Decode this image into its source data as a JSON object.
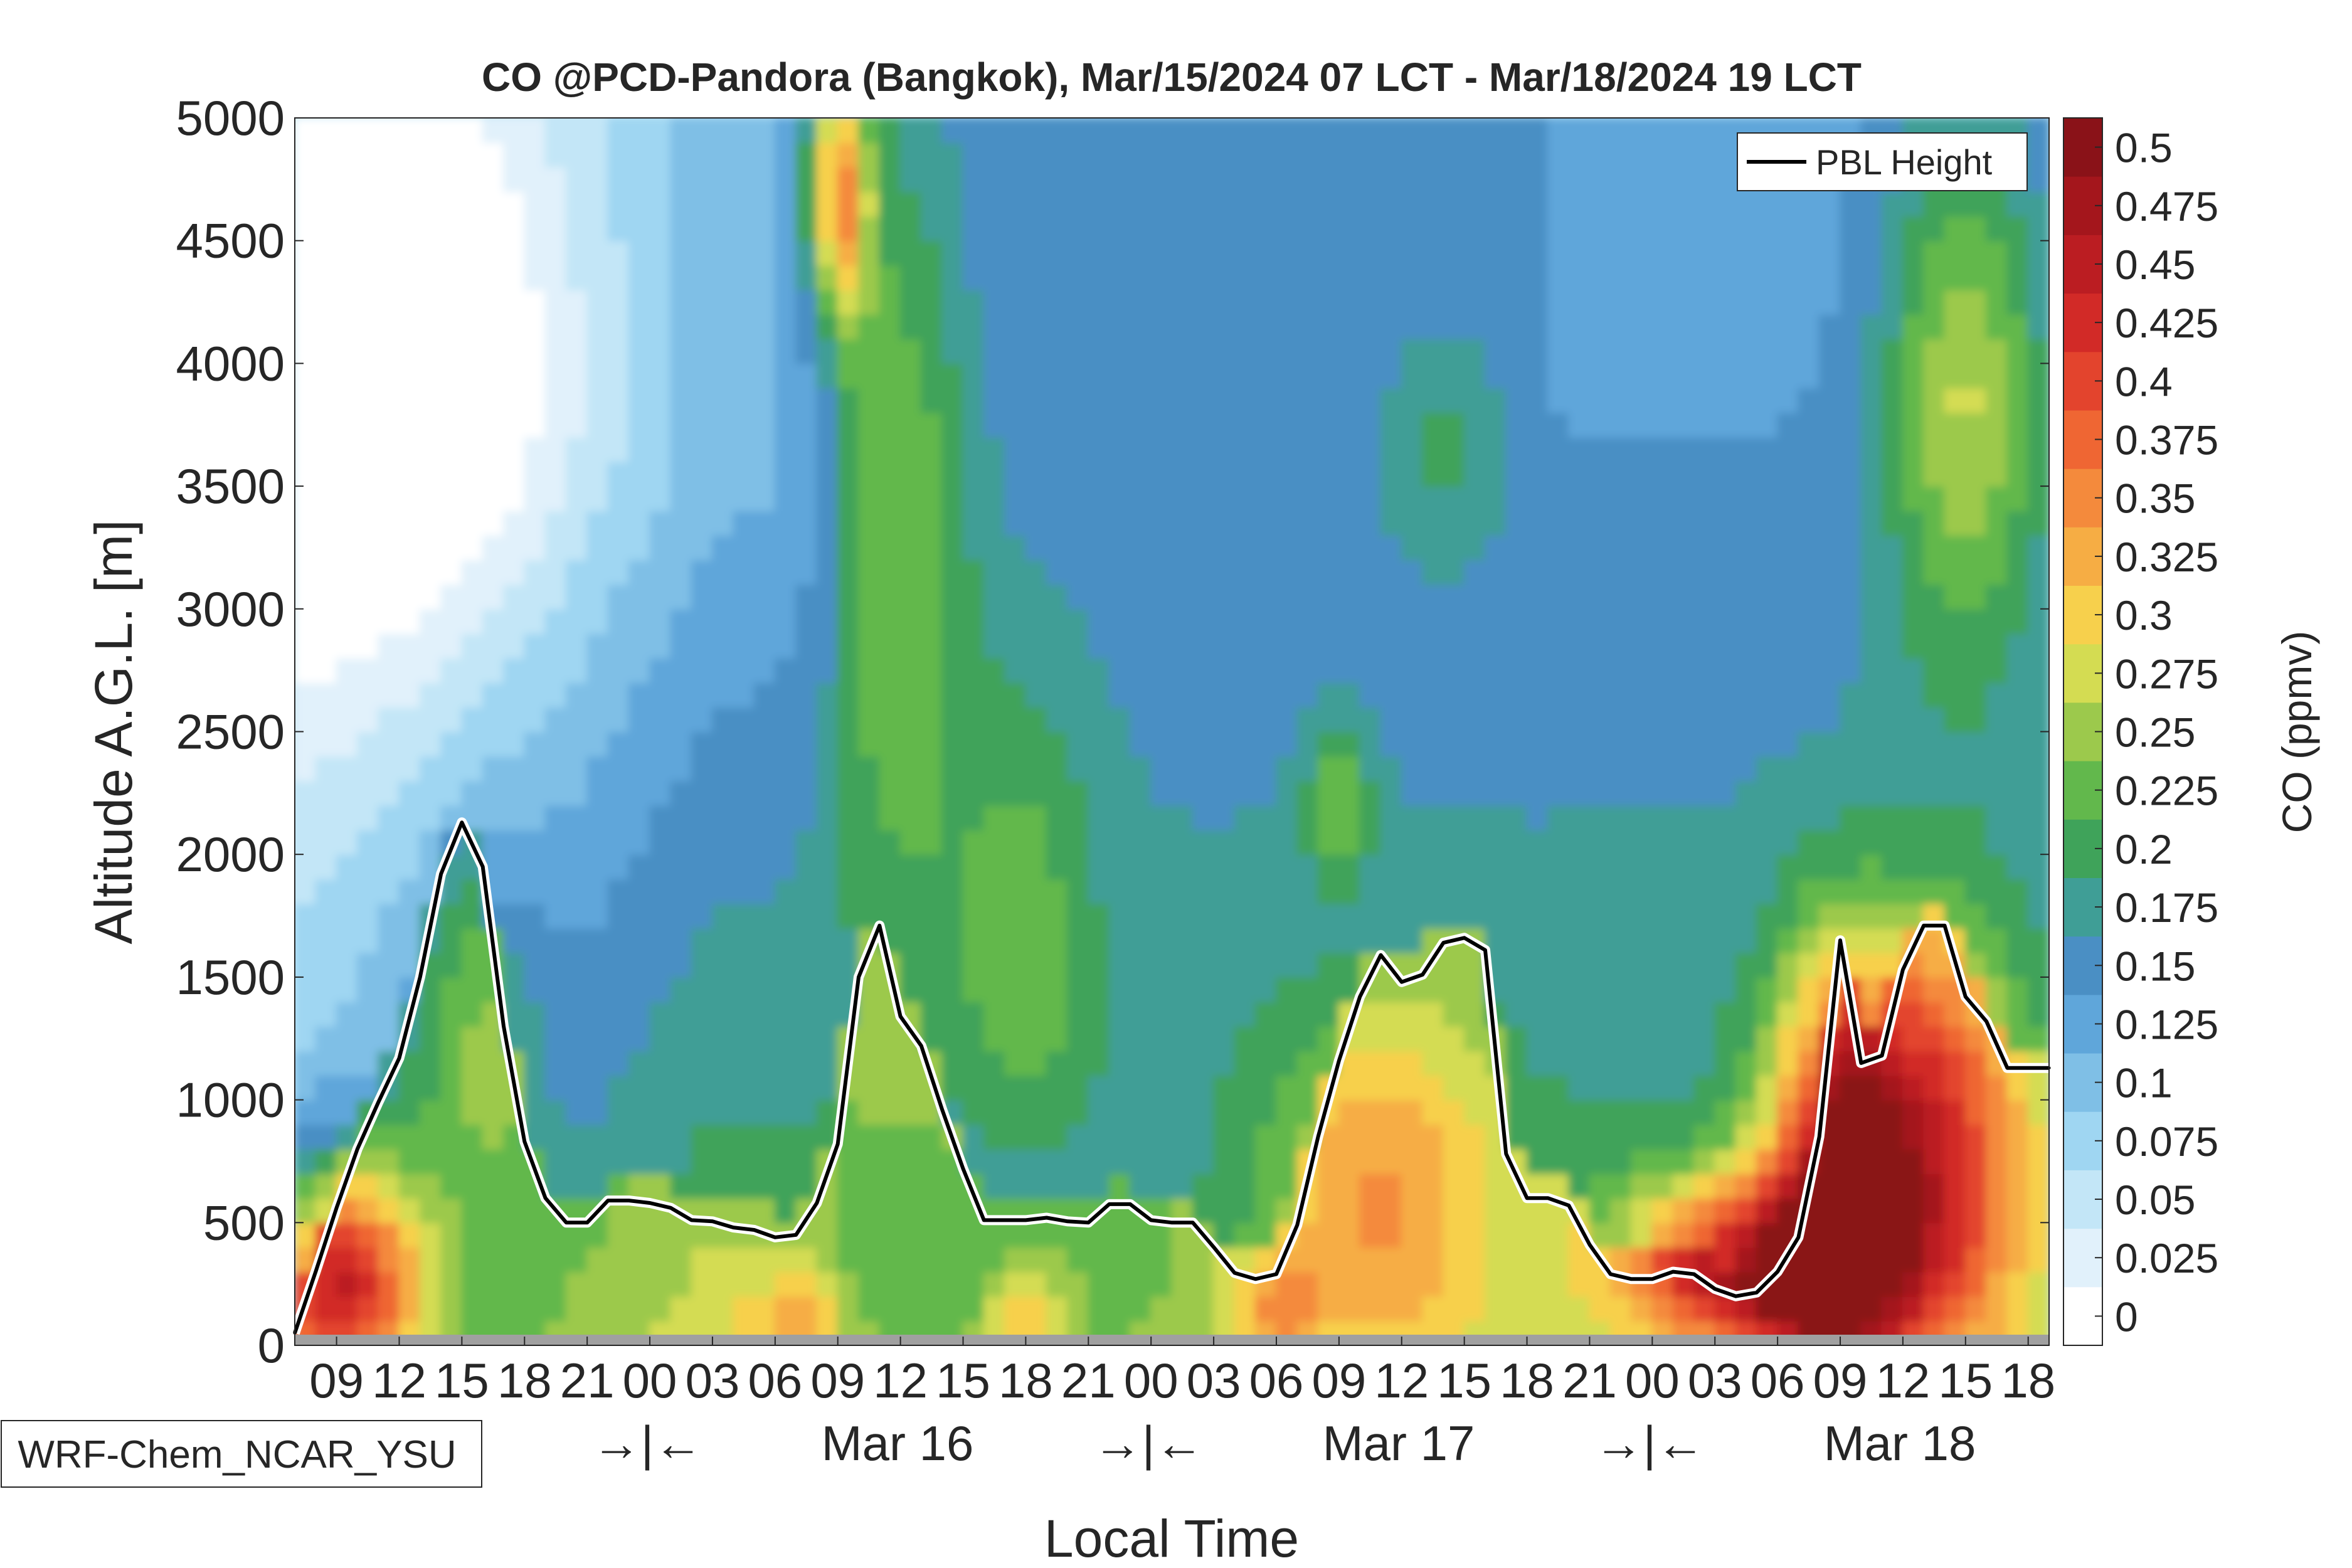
{
  "chart_data": {
    "type": "heatmap",
    "title": "CO @PCD-Pandora (Bangkok), Mar/15/2024 07 LCT - Mar/18/2024 19 LCT",
    "xlabel": "Local Time",
    "ylabel": "Altitude A.G.L. [m]",
    "x_unit": "hour since Mar/15/2024 07 LCT",
    "xlim": [
      0,
      84
    ],
    "ylim": [
      0,
      5000
    ],
    "y_ticks": [
      "0",
      "500",
      "1000",
      "1500",
      "2000",
      "2500",
      "3000",
      "3500",
      "4000",
      "4500",
      "5000"
    ],
    "x_tick_labels": [
      "09",
      "12",
      "15",
      "18",
      "21",
      "00",
      "03",
      "06",
      "09",
      "12",
      "15",
      "18",
      "21",
      "00",
      "03",
      "06",
      "09",
      "12",
      "15",
      "18",
      "21",
      "00",
      "03",
      "06",
      "09",
      "12",
      "15",
      "18"
    ],
    "day_separators": [
      "→|←",
      "→|←",
      "→|←"
    ],
    "day_labels": [
      "Mar 16",
      "Mar 17",
      "Mar 18"
    ],
    "model_label": "WRF-Chem_NCAR_YSU",
    "colorbar": {
      "label": "CO (ppmv)",
      "ticks": [
        "0",
        "0.025",
        "0.05",
        "0.075",
        "0.1",
        "0.125",
        "0.15",
        "0.175",
        "0.2",
        "0.225",
        "0.25",
        "0.275",
        "0.3",
        "0.325",
        "0.35",
        "0.375",
        "0.4",
        "0.425",
        "0.45",
        "0.475",
        "0.5"
      ],
      "colors": [
        "#ffffff",
        "#e1f1fb",
        "#c3e6f7",
        "#9fd6f2",
        "#7fbfe6",
        "#5fa6da",
        "#4a8fc4",
        "#3f9e96",
        "#3fa35a",
        "#62b84c",
        "#9cc94c",
        "#d4dc52",
        "#f7d04c",
        "#f6ad44",
        "#f48a3c",
        "#ef6633",
        "#e3442d",
        "#d22a27",
        "#bb1d22",
        "#a4161c",
        "#8a1218"
      ]
    },
    "legend": {
      "entries": [
        "PBL Height"
      ],
      "position": "top-right"
    },
    "series": [
      {
        "name": "PBL Height",
        "x": [
          0,
          1,
          2,
          3,
          4,
          5,
          6,
          7,
          8,
          9,
          10,
          11,
          12,
          13,
          14,
          15,
          16,
          17,
          18,
          19,
          20,
          21,
          22,
          23,
          24,
          25,
          26,
          27,
          28,
          29,
          30,
          31,
          32,
          33,
          34,
          35,
          36,
          37,
          38,
          39,
          40,
          41,
          42,
          43,
          44,
          45,
          46,
          47,
          48,
          49,
          50,
          51,
          52,
          53,
          54,
          55,
          56,
          57,
          58,
          59,
          60,
          61,
          62,
          63,
          64,
          65,
          66,
          67,
          68,
          69,
          70,
          71,
          72,
          73,
          74,
          75,
          76,
          77,
          78,
          79,
          80,
          81,
          82,
          83,
          84
        ],
        "y": [
          50,
          300,
          560,
          800,
          990,
          1170,
          1500,
          1920,
          2130,
          1950,
          1300,
          830,
          600,
          500,
          500,
          590,
          590,
          580,
          560,
          510,
          505,
          480,
          470,
          440,
          450,
          580,
          820,
          1500,
          1710,
          1340,
          1220,
          960,
          720,
          510,
          510,
          510,
          520,
          505,
          500,
          575,
          575,
          510,
          500,
          500,
          400,
          295,
          270,
          290,
          490,
          850,
          1160,
          1420,
          1590,
          1480,
          1510,
          1640,
          1660,
          1610,
          780,
          600,
          600,
          570,
          410,
          290,
          270,
          270,
          300,
          290,
          230,
          200,
          215,
          300,
          440,
          850,
          1650,
          1150,
          1180,
          1530,
          1710,
          1710,
          1420,
          1320,
          1130,
          1130,
          1130
        ]
      }
    ]
  }
}
